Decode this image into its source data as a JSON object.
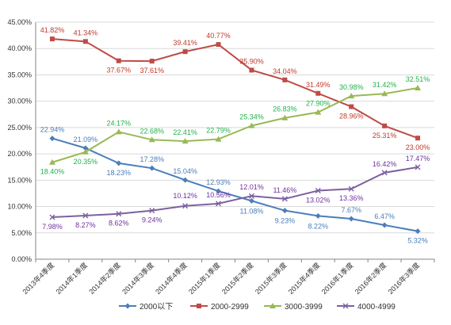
{
  "chart_data": {
    "type": "line",
    "ylim": [
      0,
      45
    ],
    "y_tick_step": 5,
    "y_unit_suffix": "%",
    "grid": true,
    "legend_position": "bottom",
    "categories": [
      "2013年4季度",
      "2014年1季度",
      "2014年2季度",
      "2014年3季度",
      "2014年4季度",
      "2015年1季度",
      "2015年2季度",
      "2015年3季度",
      "2015年4季度",
      "2016年1季度",
      "2016年2季度",
      "2016年3季度"
    ],
    "series": [
      {
        "name": "2000以下",
        "color": "#4a7ebb",
        "marker": "diamond",
        "values": [
          22.94,
          21.09,
          18.23,
          17.28,
          15.04,
          12.93,
          11.08,
          9.23,
          8.22,
          7.67,
          6.47,
          5.32
        ],
        "labels": [
          "22.94%",
          "21.09%",
          "18.23%",
          "17.28%",
          "15.04%",
          "12.93%",
          "11.08%",
          "9.23%",
          "8.22%",
          "7.67%",
          "6.47%",
          "5.32%"
        ]
      },
      {
        "name": "2000-2999",
        "color": "#be4b48",
        "marker": "square",
        "values": [
          41.82,
          41.34,
          37.67,
          37.61,
          39.41,
          40.77,
          35.9,
          34.04,
          31.49,
          28.96,
          25.31,
          23.0
        ],
        "labels": [
          "41.82%",
          "41.34%",
          "37.67%",
          "37.61%",
          "39.41%",
          "40.77%",
          "35.90%",
          "34.04%",
          "31.49%",
          "28.96%",
          "25.31%",
          "23.00%"
        ]
      },
      {
        "name": "3000-3999",
        "color": "#98b954",
        "marker": "triangle",
        "values": [
          18.4,
          20.35,
          24.17,
          22.68,
          22.41,
          22.79,
          25.34,
          26.83,
          27.9,
          30.98,
          31.42,
          32.51
        ],
        "labels": [
          "18.40%",
          "20.35%",
          "24.17%",
          "22.68%",
          "22.41%",
          "22.79%",
          "25.34%",
          "26.83%",
          "27.90%",
          "30.98%",
          "31.42%",
          "32.51%"
        ]
      },
      {
        "name": "4000-4999",
        "color": "#7d60a0",
        "marker": "x",
        "values": [
          7.98,
          8.27,
          8.62,
          9.24,
          10.12,
          10.56,
          12.01,
          11.46,
          13.02,
          13.36,
          16.42,
          17.47
        ],
        "labels": [
          "7.98%",
          "8.27%",
          "8.62%",
          "9.24%",
          "10.12%",
          "10.56%",
          "12.01%",
          "11.46%",
          "13.02%",
          "13.36%",
          "16.42%",
          "17.47%"
        ]
      }
    ],
    "label_colors": {
      "2000以下": "#4a7ebb",
      "2000-2999": "#c0392b",
      "3000-3999": "#22b14c",
      "4000-4999": "#7030a0"
    }
  }
}
